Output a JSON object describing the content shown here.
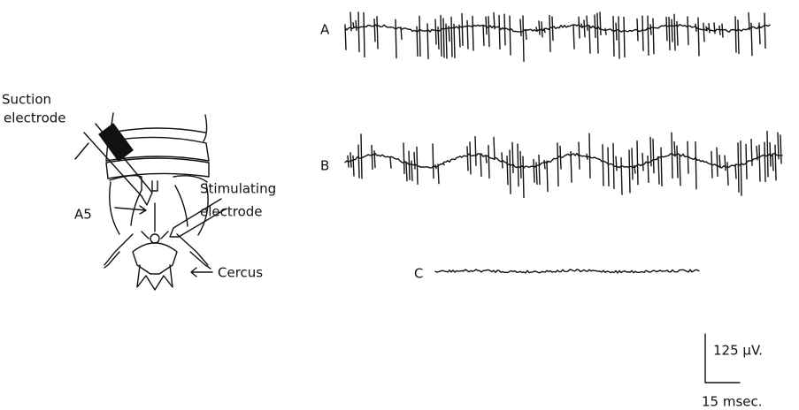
{
  "diagram": {
    "suction_electrode": [
      "Suction",
      "electrode"
    ],
    "stimulating_electrode": [
      "Stimulating",
      "electrode"
    ],
    "segment": "A5",
    "cercus": "Cercus"
  },
  "traces": [
    {
      "label": "A"
    },
    {
      "label": "B"
    },
    {
      "label": "C"
    }
  ],
  "scale_bar": {
    "voltage": "125 μV.",
    "time": "15 msec."
  }
}
